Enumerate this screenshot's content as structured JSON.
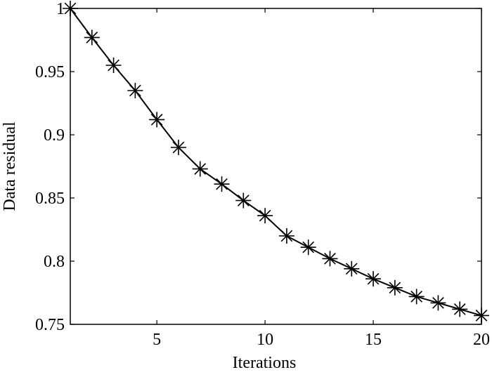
{
  "chart_data": {
    "type": "line",
    "title": "",
    "xlabel": "Iterations",
    "ylabel": "Data residual",
    "xlim": [
      1,
      20
    ],
    "ylim": [
      0.75,
      1
    ],
    "xticks": [
      5,
      10,
      15,
      20
    ],
    "xtick_labels": [
      "5",
      "10",
      "15",
      "20"
    ],
    "yticks": [
      0.75,
      0.8,
      0.85,
      0.9,
      0.95,
      1
    ],
    "ytick_labels": [
      "0.75",
      "0.8",
      "0.85",
      "0.9",
      "0.95",
      "1"
    ],
    "grid": false,
    "legend": "none",
    "series": [
      {
        "marker": "asterisk",
        "line_color": "#000000",
        "x": [
          1,
          2,
          3,
          4,
          5,
          6,
          7,
          8,
          9,
          10,
          11,
          12,
          13,
          14,
          15,
          16,
          17,
          18,
          19,
          20
        ],
        "y": [
          1.0,
          0.977,
          0.955,
          0.935,
          0.912,
          0.89,
          0.873,
          0.861,
          0.848,
          0.836,
          0.82,
          0.811,
          0.802,
          0.794,
          0.786,
          0.779,
          0.772,
          0.767,
          0.762,
          0.757
        ]
      }
    ]
  }
}
